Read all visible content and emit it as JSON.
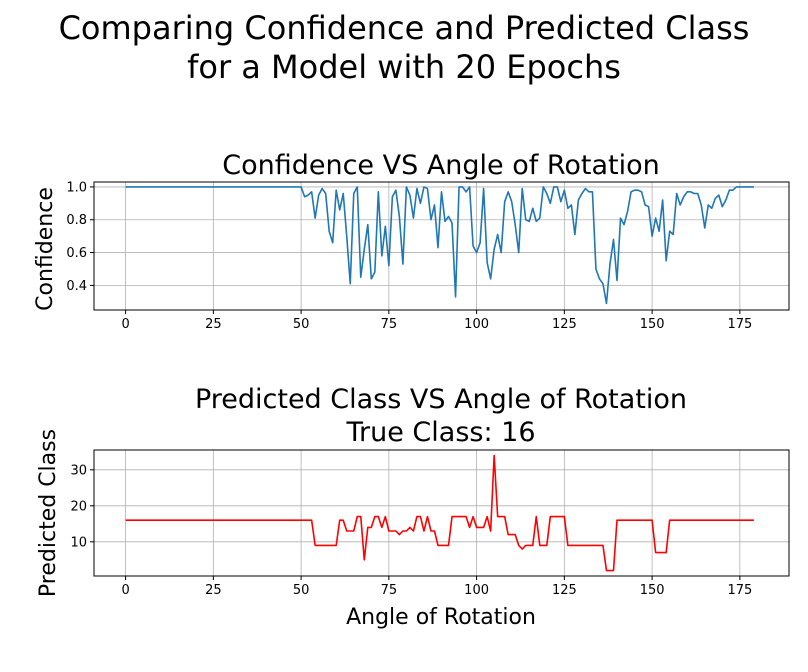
{
  "figure": {
    "title_line1": "Comparing Confidence and Predicted Class",
    "title_line2": "for a Model with 20 Epochs"
  },
  "chart_data": [
    {
      "type": "line",
      "title": "Confidence VS Angle of Rotation",
      "xlabel": "",
      "ylabel": "Confidence",
      "xlim": [
        -9,
        189
      ],
      "ylim": [
        0.25,
        1.03
      ],
      "xticks": [
        0,
        25,
        50,
        75,
        100,
        125,
        150,
        175
      ],
      "yticks": [
        0.4,
        0.6,
        0.8,
        1.0
      ],
      "ytick_labels": [
        "0.4",
        "0.6",
        "0.8",
        "1.0"
      ],
      "grid": true,
      "color": "#1f77b4",
      "x_start": 0,
      "x_step": 1,
      "values": [
        1.0,
        1.0,
        1.0,
        1.0,
        1.0,
        1.0,
        1.0,
        1.0,
        1.0,
        1.0,
        1.0,
        1.0,
        1.0,
        1.0,
        1.0,
        1.0,
        1.0,
        1.0,
        1.0,
        1.0,
        1.0,
        1.0,
        1.0,
        1.0,
        1.0,
        1.0,
        1.0,
        1.0,
        1.0,
        1.0,
        1.0,
        1.0,
        1.0,
        1.0,
        1.0,
        1.0,
        1.0,
        1.0,
        1.0,
        1.0,
        1.0,
        1.0,
        1.0,
        1.0,
        1.0,
        1.0,
        1.0,
        1.0,
        1.0,
        1.0,
        1.0,
        0.94,
        0.95,
        0.97,
        0.81,
        0.95,
        0.99,
        0.96,
        0.73,
        0.66,
        0.98,
        0.86,
        0.96,
        0.7,
        0.41,
        0.96,
        1.0,
        0.45,
        0.62,
        0.77,
        0.44,
        0.48,
        0.97,
        0.58,
        0.76,
        0.52,
        0.94,
        0.98,
        0.82,
        0.53,
        1.0,
        0.95,
        0.81,
        0.99,
        0.9,
        1.0,
        0.99,
        0.8,
        0.89,
        0.63,
        0.97,
        0.79,
        0.82,
        0.78,
        0.33,
        1.0,
        1.0,
        0.97,
        1.0,
        0.64,
        0.6,
        0.66,
        0.99,
        0.54,
        0.44,
        0.62,
        0.71,
        0.6,
        0.91,
        0.97,
        0.91,
        0.77,
        0.6,
        0.99,
        0.8,
        0.79,
        0.87,
        0.79,
        0.81,
        1.0,
        0.96,
        0.9,
        1.0,
        1.0,
        0.91,
        0.98,
        0.87,
        0.89,
        0.71,
        0.92,
        0.96,
        0.99,
        0.97,
        0.97,
        0.5,
        0.44,
        0.41,
        0.29,
        0.53,
        0.68,
        0.43,
        0.81,
        0.77,
        0.85,
        0.97,
        0.98,
        0.98,
        0.97,
        0.89,
        0.88,
        0.7,
        0.81,
        0.73,
        0.92,
        0.55,
        0.73,
        0.71,
        0.96,
        0.89,
        0.94,
        0.97,
        0.97,
        0.96,
        0.96,
        0.89,
        0.75,
        0.89,
        0.87,
        0.93,
        0.95,
        0.88,
        0.92,
        0.98,
        0.98,
        1.0,
        1.0,
        1.0,
        1.0,
        1.0,
        1.0
      ]
    },
    {
      "type": "line",
      "title": "Predicted Class VS Angle of Rotation",
      "subtitle": "True Class: 16",
      "xlabel": "Angle of Rotation",
      "ylabel": "Predicted Class",
      "xlim": [
        -9,
        189
      ],
      "ylim": [
        0.5,
        35.5
      ],
      "xticks": [
        0,
        25,
        50,
        75,
        100,
        125,
        150,
        175
      ],
      "yticks": [
        10,
        20,
        30
      ],
      "ytick_labels": [
        "10",
        "20",
        "30"
      ],
      "grid": true,
      "color": "#ff0000",
      "x_start": 0,
      "x_step": 1,
      "values": [
        16,
        16,
        16,
        16,
        16,
        16,
        16,
        16,
        16,
        16,
        16,
        16,
        16,
        16,
        16,
        16,
        16,
        16,
        16,
        16,
        16,
        16,
        16,
        16,
        16,
        16,
        16,
        16,
        16,
        16,
        16,
        16,
        16,
        16,
        16,
        16,
        16,
        16,
        16,
        16,
        16,
        16,
        16,
        16,
        16,
        16,
        16,
        16,
        16,
        16,
        16,
        16,
        16,
        16,
        9,
        9,
        9,
        9,
        9,
        9,
        9,
        16,
        16,
        13,
        13,
        13,
        17,
        17,
        5,
        14,
        14,
        17,
        17,
        14,
        17,
        13,
        13,
        13,
        12,
        13,
        13,
        14,
        13,
        17,
        17,
        13,
        17,
        13,
        13,
        9,
        9,
        9,
        9,
        17,
        17,
        17,
        17,
        17,
        14,
        17,
        14,
        14,
        14,
        17,
        13,
        34,
        17,
        17,
        17,
        12,
        12,
        12,
        9,
        8,
        9,
        9,
        9,
        17,
        9,
        9,
        9,
        17,
        17,
        17,
        17,
        17,
        9,
        9,
        9,
        9,
        9,
        9,
        9,
        9,
        9,
        9,
        9,
        2,
        2,
        2,
        16,
        16,
        16,
        16,
        16,
        16,
        16,
        16,
        16,
        16,
        16,
        7,
        7,
        7,
        7,
        16,
        16,
        16,
        16,
        16,
        16,
        16,
        16,
        16,
        16,
        16,
        16,
        16,
        16,
        16,
        16,
        16,
        16,
        16,
        16,
        16,
        16,
        16,
        16,
        16
      ]
    }
  ]
}
